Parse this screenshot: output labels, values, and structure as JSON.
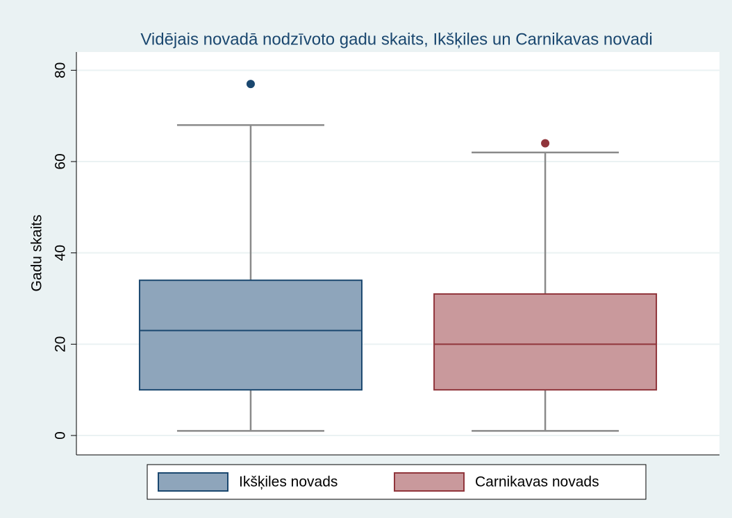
{
  "chart_data": {
    "type": "box",
    "title": "Vidējais novadā nodzīvoto gadu skaits, Ikšķiles un Carnikavas novadi",
    "y_label": "Gadu skaits",
    "series": [
      {
        "name": "Ikšķiles novads",
        "color": "#8ea5bb",
        "edge_color": "#1a476f",
        "min": 1,
        "q1": 10,
        "median": 23,
        "q3": 34,
        "max": 68,
        "outliers": [
          77
        ]
      },
      {
        "name": "Carnikavas novads",
        "color": "#c9999c",
        "edge_color": "#90353b",
        "min": 1,
        "q1": 10,
        "median": 20,
        "q3": 31,
        "max": 62,
        "outliers": [
          64
        ]
      }
    ],
    "ylim": [
      -4.25,
      84
    ],
    "yticks": [
      0,
      20,
      40,
      60,
      80
    ],
    "grid": true,
    "legend": "bottom"
  }
}
